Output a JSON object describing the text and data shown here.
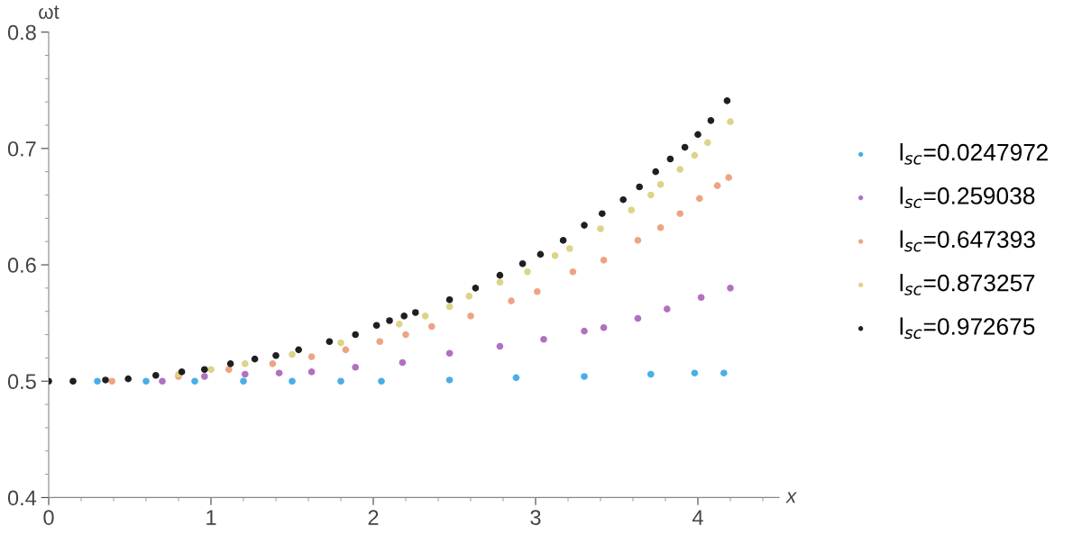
{
  "chart_data": {
    "type": "scatter",
    "xlabel": "x",
    "ylabel": "ωt",
    "xlim": [
      0,
      4.5
    ],
    "ylim": [
      0.4,
      0.8
    ],
    "xticks": [
      0,
      1,
      2,
      3,
      4
    ],
    "yticks": [
      0.4,
      0.5,
      0.6,
      0.7,
      0.8
    ],
    "grid": false,
    "legend": "right",
    "marker": "circle",
    "series": [
      {
        "name": "l$_{sc}$=0.0247972",
        "color": "#4aaee6",
        "x": [
          0.3,
          0.6,
          0.9,
          1.2,
          1.5,
          1.8,
          2.05,
          2.47,
          2.88,
          3.3,
          3.71,
          3.98,
          4.16
        ],
        "values": [
          0.5,
          0.5,
          0.5,
          0.5,
          0.5,
          0.5,
          0.5,
          0.501,
          0.503,
          0.504,
          0.506,
          0.507,
          0.507
        ]
      },
      {
        "name": "l$_{sc}$=0.259038",
        "color": "#b071c2",
        "x": [
          0.7,
          0.96,
          1.21,
          1.42,
          1.62,
          1.89,
          2.18,
          2.47,
          2.78,
          3.05,
          3.3,
          3.42,
          3.63,
          3.81,
          4.02,
          4.2
        ],
        "values": [
          0.5,
          0.504,
          0.506,
          0.507,
          0.508,
          0.512,
          0.516,
          0.524,
          0.53,
          0.536,
          0.543,
          0.546,
          0.554,
          0.562,
          0.572,
          0.58
        ]
      },
      {
        "name": "l$_{sc}$=0.647393",
        "color": "#eda483",
        "x": [
          0.39,
          0.8,
          1.11,
          1.38,
          1.62,
          1.83,
          2.04,
          2.2,
          2.36,
          2.6,
          2.85,
          3.01,
          3.23,
          3.42,
          3.63,
          3.77,
          3.89,
          4.01,
          4.12,
          4.19
        ],
        "values": [
          0.5,
          0.504,
          0.51,
          0.515,
          0.521,
          0.527,
          0.534,
          0.54,
          0.547,
          0.556,
          0.569,
          0.577,
          0.594,
          0.604,
          0.621,
          0.632,
          0.644,
          0.657,
          0.668,
          0.675
        ]
      },
      {
        "name": "l$_{sc}$=0.873257",
        "color": "#dcd486",
        "x": [
          0.8,
          1.0,
          1.21,
          1.5,
          1.8,
          2.16,
          2.32,
          2.47,
          2.59,
          2.78,
          2.95,
          3.12,
          3.21,
          3.4,
          3.59,
          3.71,
          3.77,
          3.89,
          3.98,
          4.06,
          4.2
        ],
        "values": [
          0.506,
          0.51,
          0.515,
          0.523,
          0.533,
          0.549,
          0.556,
          0.564,
          0.573,
          0.585,
          0.594,
          0.608,
          0.614,
          0.631,
          0.647,
          0.66,
          0.669,
          0.682,
          0.694,
          0.705,
          0.723
        ]
      },
      {
        "name": "l$_{sc}$=0.972675",
        "color": "#1f1f1f",
        "x": [
          0,
          0.15,
          0.35,
          0.49,
          0.66,
          0.82,
          0.96,
          1.12,
          1.27,
          1.4,
          1.54,
          1.73,
          1.89,
          2.02,
          2.1,
          2.19,
          2.26,
          2.47,
          2.63,
          2.78,
          2.92,
          3.03,
          3.17,
          3.3,
          3.41,
          3.54,
          3.64,
          3.74,
          3.83,
          3.92,
          4.0,
          4.08,
          4.18
        ],
        "values": [
          0.5,
          0.5,
          0.501,
          0.502,
          0.505,
          0.508,
          0.51,
          0.515,
          0.519,
          0.522,
          0.527,
          0.534,
          0.54,
          0.548,
          0.552,
          0.556,
          0.559,
          0.57,
          0.58,
          0.591,
          0.601,
          0.609,
          0.621,
          0.634,
          0.644,
          0.656,
          0.667,
          0.68,
          0.691,
          0.701,
          0.712,
          0.724,
          0.741
        ]
      }
    ]
  }
}
